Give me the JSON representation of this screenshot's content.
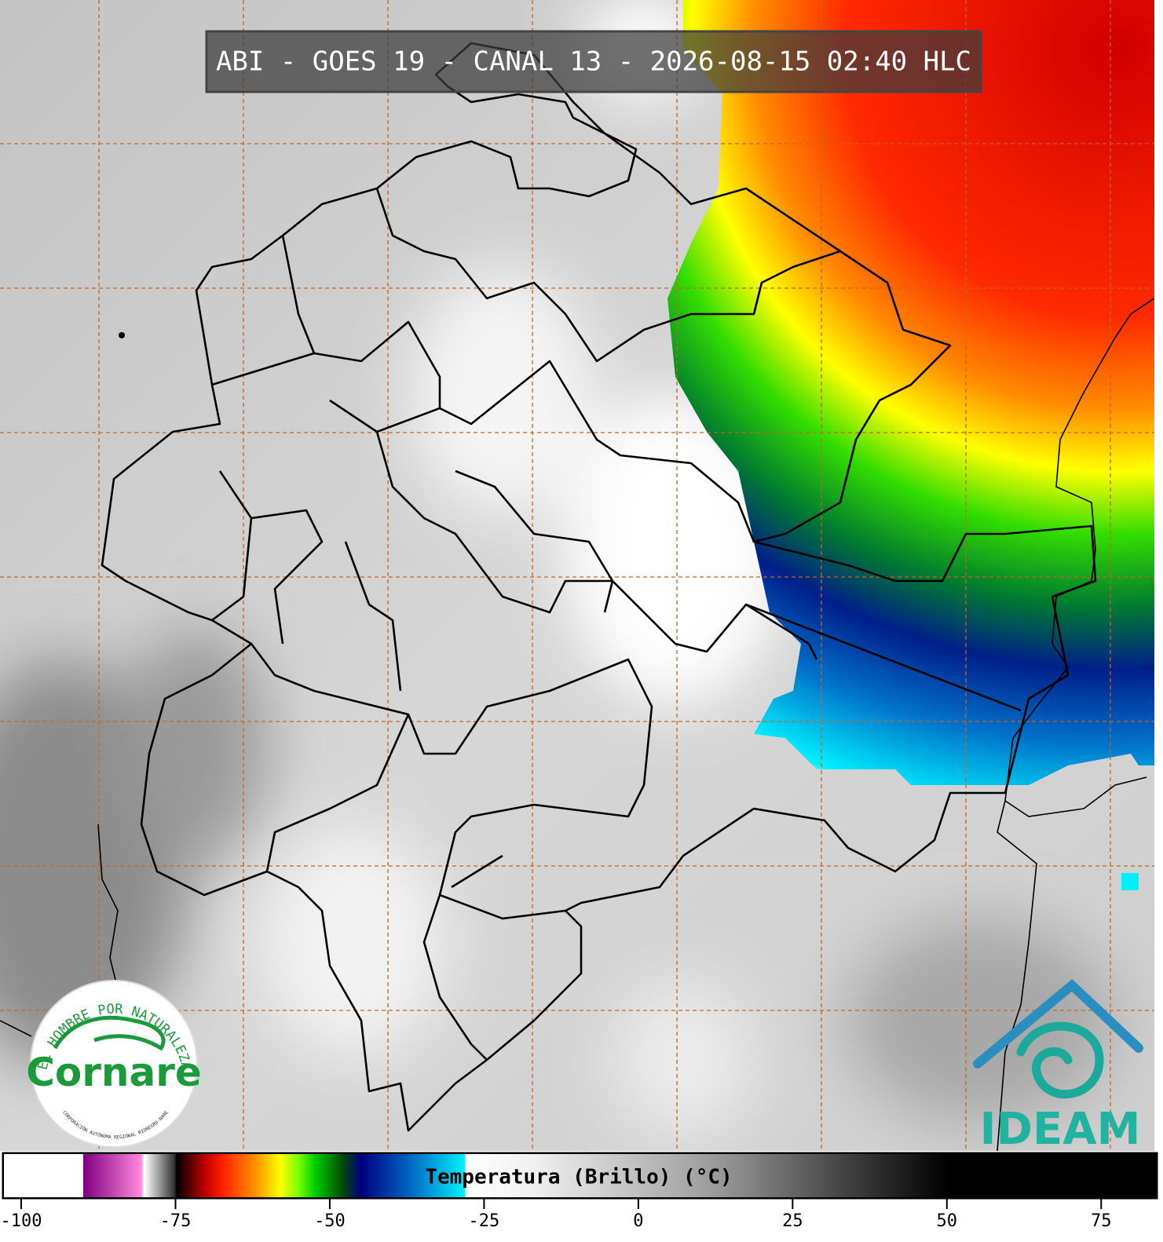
{
  "map": {
    "title": "ABI - GOES 19 - CANAL 13 - 2026-08-15 02:40 HLC",
    "grid": true
  },
  "logos": {
    "cornare": {
      "motto": "EL HOMBRE POR NATURALEZA",
      "name": "Cornare",
      "subtitle": "CORPORACIÓN AUTÓNOMA REGIONAL RIONEGRO-NARE"
    },
    "ideam": "IDEAM"
  },
  "colorbar": {
    "label": "Temperatura (Brillo) (°C)",
    "lim": [
      -102.8,
      84
    ],
    "ticks": [
      -100,
      -75,
      -50,
      -25,
      0,
      25,
      50,
      75
    ]
  }
}
